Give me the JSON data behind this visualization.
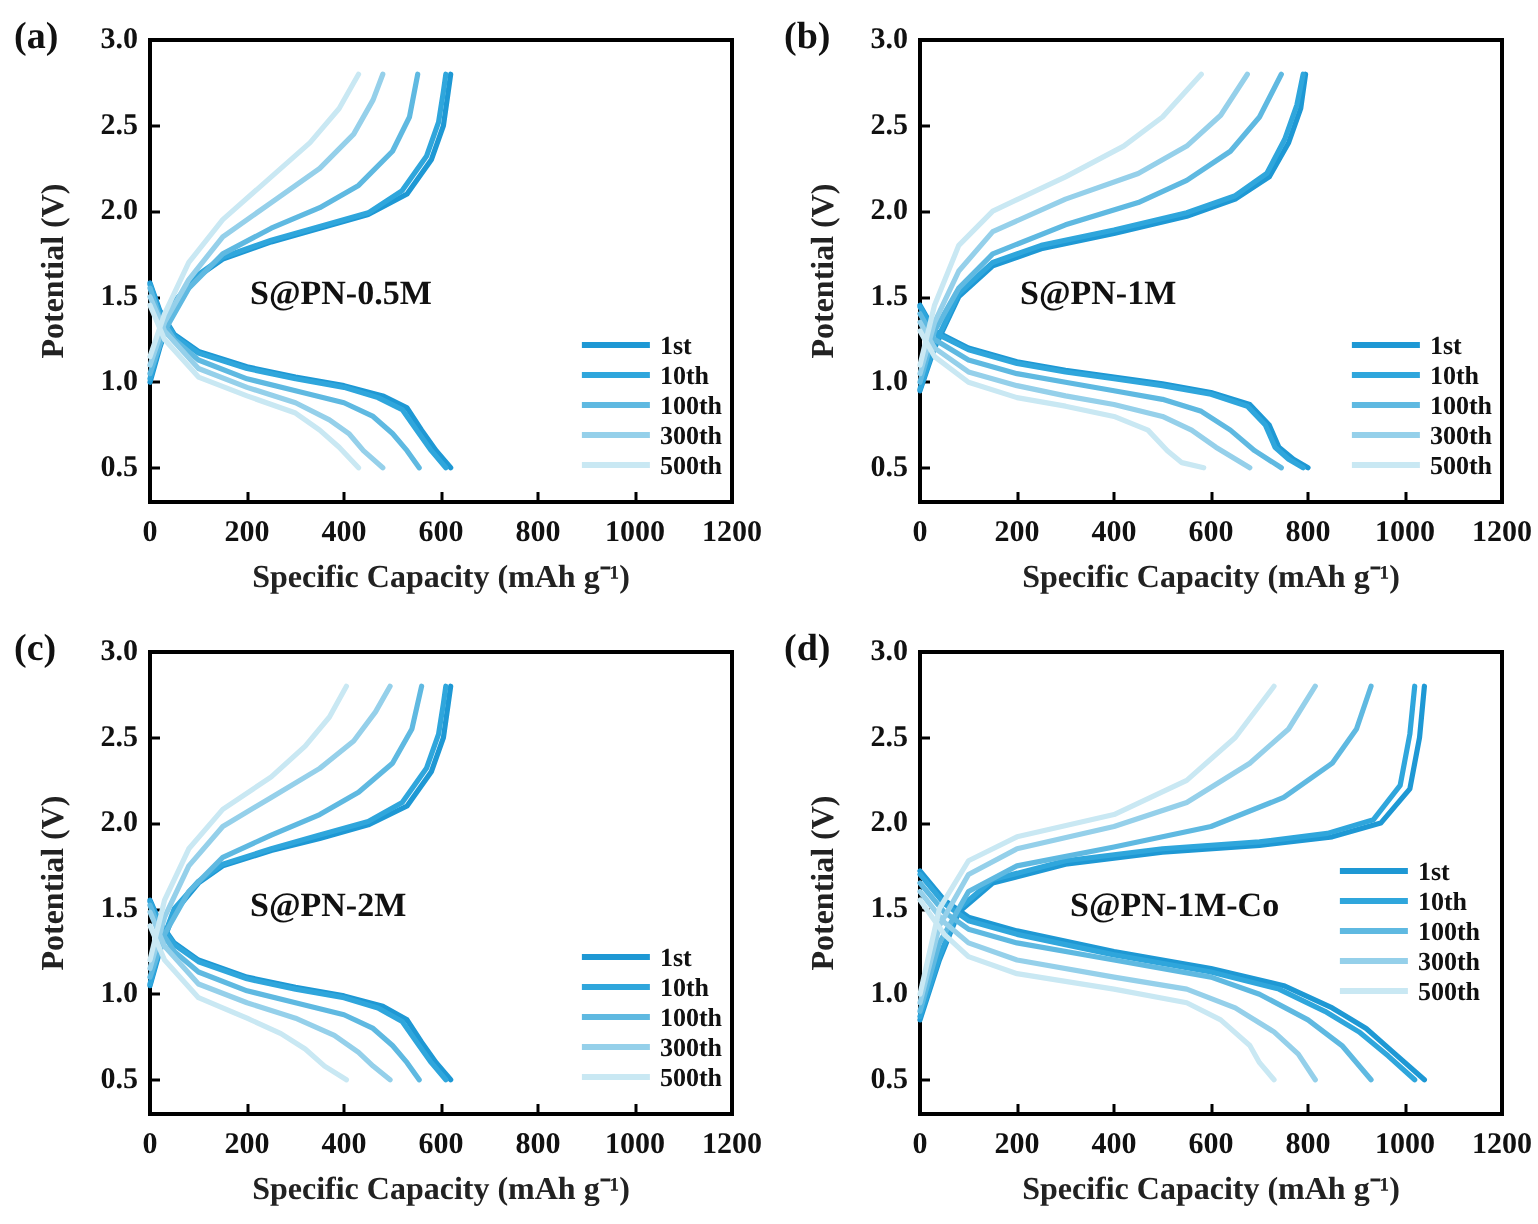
{
  "chart_data": [
    {
      "type": "line",
      "title": "(a)",
      "xlabel": "Specific Capacity (mAh g⁻¹)",
      "ylabel": "Potential (V)",
      "annotations": [
        "S@PN-0.5M"
      ],
      "legend": "bottom right",
      "xlim": [
        0,
        1200
      ],
      "xticks": [
        0,
        200,
        400,
        600,
        800,
        1000,
        1200
      ],
      "ylim": [
        0.3,
        3.0
      ],
      "yticks": [
        0.5,
        {
          "value": 1,
          "label": "1.0"
        },
        1.5,
        {
          "value": 2,
          "label": "2.0"
        },
        2.5,
        {
          "value": 3,
          "label": "3.0"
        }
      ],
      "series": [
        {
          "name": "1st",
          "color": "#1e98d4",
          "x": [
            0,
            20,
            50,
            100,
            200,
            300,
            400,
            480,
            530,
            560,
            590,
            620,
            null,
            0,
            20,
            50,
            100,
            150,
            250,
            350,
            450,
            530,
            580,
            605,
            615,
            620
          ],
          "values": [
            1.58,
            1.42,
            1.28,
            1.18,
            1.09,
            1.03,
            0.98,
            0.92,
            0.85,
            0.72,
            0.6,
            0.5,
            null,
            1.0,
            1.2,
            1.45,
            1.62,
            1.72,
            1.82,
            1.9,
            1.98,
            2.1,
            2.3,
            2.5,
            2.7,
            2.8
          ]
        },
        {
          "name": "10th",
          "color": "#2fa6dc",
          "x": [
            0,
            20,
            50,
            100,
            200,
            300,
            400,
            470,
            520,
            550,
            580,
            610,
            null,
            0,
            20,
            50,
            100,
            150,
            250,
            350,
            450,
            520,
            570,
            595,
            605,
            610
          ],
          "values": [
            1.57,
            1.41,
            1.27,
            1.17,
            1.08,
            1.02,
            0.97,
            0.91,
            0.84,
            0.72,
            0.6,
            0.5,
            null,
            1.02,
            1.22,
            1.47,
            1.63,
            1.73,
            1.83,
            1.91,
            1.99,
            2.12,
            2.32,
            2.52,
            2.7,
            2.8
          ]
        },
        {
          "name": "100th",
          "color": "#5fb9e1",
          "x": [
            0,
            20,
            50,
            100,
            200,
            300,
            400,
            460,
            500,
            530,
            555,
            null,
            0,
            30,
            80,
            150,
            250,
            350,
            430,
            500,
            535,
            552
          ],
          "values": [
            1.55,
            1.38,
            1.25,
            1.13,
            1.02,
            0.95,
            0.88,
            0.8,
            0.7,
            0.6,
            0.5,
            null,
            1.05,
            1.3,
            1.55,
            1.75,
            1.9,
            2.02,
            2.15,
            2.35,
            2.55,
            2.8
          ]
        },
        {
          "name": "300th",
          "color": "#95d0ea",
          "x": [
            0,
            30,
            100,
            200,
            300,
            370,
            410,
            440,
            480,
            null,
            0,
            30,
            80,
            150,
            250,
            350,
            420,
            460,
            480
          ],
          "values": [
            1.5,
            1.3,
            1.08,
            0.97,
            0.88,
            0.78,
            0.7,
            0.6,
            0.5,
            null,
            1.1,
            1.35,
            1.6,
            1.85,
            2.05,
            2.25,
            2.45,
            2.65,
            2.8
          ]
        },
        {
          "name": "500th",
          "color": "#c9e8f3",
          "x": [
            0,
            30,
            100,
            200,
            300,
            350,
            390,
            430,
            null,
            0,
            30,
            80,
            150,
            250,
            330,
            390,
            430
          ],
          "values": [
            1.45,
            1.25,
            1.03,
            0.92,
            0.82,
            0.72,
            0.62,
            0.5,
            null,
            1.15,
            1.4,
            1.7,
            1.95,
            2.2,
            2.4,
            2.6,
            2.8
          ]
        }
      ]
    },
    {
      "type": "line",
      "title": "(b)",
      "xlabel": "Specific Capacity (mAh g⁻¹)",
      "ylabel": "Potential (V)",
      "annotations": [
        "S@PN-1M"
      ],
      "legend": "bottom right",
      "xlim": [
        0,
        1200
      ],
      "xticks": [
        0,
        200,
        400,
        600,
        800,
        1000,
        1200
      ],
      "ylim": [
        0.3,
        3.0
      ],
      "yticks": [
        0.5,
        {
          "value": 1,
          "label": "1.0"
        },
        1.5,
        {
          "value": 2,
          "label": "2.0"
        },
        2.5,
        {
          "value": 3,
          "label": "3.0"
        }
      ],
      "series": [
        {
          "name": "1st",
          "color": "#1e98d4",
          "x": [
            0,
            30,
            100,
            200,
            300,
            400,
            500,
            600,
            680,
            720,
            740,
            770,
            800,
            null,
            0,
            30,
            80,
            150,
            250,
            400,
            550,
            650,
            720,
            760,
            785,
            795
          ],
          "values": [
            1.45,
            1.3,
            1.2,
            1.12,
            1.07,
            1.03,
            0.99,
            0.94,
            0.87,
            0.75,
            0.62,
            0.55,
            0.5,
            null,
            0.95,
            1.2,
            1.5,
            1.68,
            1.78,
            1.87,
            1.97,
            2.07,
            2.2,
            2.4,
            2.6,
            2.8
          ]
        },
        {
          "name": "10th",
          "color": "#2fa6dc",
          "x": [
            0,
            30,
            100,
            200,
            300,
            400,
            500,
            600,
            675,
            712,
            732,
            760,
            790,
            null,
            0,
            30,
            80,
            150,
            250,
            400,
            550,
            650,
            715,
            752,
            777,
            790
          ],
          "values": [
            1.44,
            1.29,
            1.19,
            1.11,
            1.06,
            1.02,
            0.98,
            0.93,
            0.86,
            0.75,
            0.62,
            0.55,
            0.5,
            null,
            0.96,
            1.22,
            1.52,
            1.7,
            1.8,
            1.89,
            1.99,
            2.09,
            2.22,
            2.42,
            2.62,
            2.8
          ]
        },
        {
          "name": "100th",
          "color": "#5fb9e1",
          "x": [
            0,
            30,
            100,
            200,
            300,
            400,
            500,
            580,
            640,
            690,
            745,
            null,
            0,
            30,
            80,
            150,
            300,
            450,
            550,
            640,
            700,
            745
          ],
          "values": [
            1.4,
            1.25,
            1.13,
            1.05,
            1.0,
            0.95,
            0.9,
            0.83,
            0.72,
            0.6,
            0.5,
            null,
            1.0,
            1.3,
            1.55,
            1.75,
            1.92,
            2.05,
            2.18,
            2.35,
            2.55,
            2.8
          ]
        },
        {
          "name": "300th",
          "color": "#95d0ea",
          "x": [
            0,
            30,
            100,
            200,
            300,
            400,
            500,
            560,
            610,
            680,
            null,
            0,
            30,
            80,
            150,
            300,
            450,
            550,
            620,
            675
          ],
          "values": [
            1.35,
            1.2,
            1.06,
            0.98,
            0.92,
            0.87,
            0.8,
            0.72,
            0.62,
            0.5,
            null,
            1.05,
            1.35,
            1.65,
            1.88,
            2.07,
            2.22,
            2.38,
            2.56,
            2.8
          ]
        },
        {
          "name": "500th",
          "color": "#c9e8f3",
          "x": [
            0,
            30,
            100,
            200,
            300,
            400,
            470,
            510,
            540,
            585,
            null,
            0,
            30,
            80,
            150,
            300,
            420,
            500,
            580
          ],
          "values": [
            1.3,
            1.15,
            1.0,
            0.91,
            0.86,
            0.8,
            0.72,
            0.6,
            0.53,
            0.5,
            null,
            1.1,
            1.45,
            1.8,
            2.0,
            2.2,
            2.38,
            2.55,
            2.8
          ]
        }
      ]
    },
    {
      "type": "line",
      "title": "(c)",
      "xlabel": "Specific Capacity (mAh g⁻¹)",
      "ylabel": "Potential (V)",
      "annotations": [
        "S@PN-2M"
      ],
      "legend": "bottom right",
      "xlim": [
        0,
        1200
      ],
      "xticks": [
        0,
        200,
        400,
        600,
        800,
        1000,
        1200
      ],
      "ylim": [
        0.3,
        3.0
      ],
      "yticks": [
        0.5,
        {
          "value": 1,
          "label": "1.0"
        },
        1.5,
        {
          "value": 2,
          "label": "2.0"
        },
        2.5,
        {
          "value": 3,
          "label": "3.0"
        }
      ],
      "series": [
        {
          "name": "1st",
          "color": "#1e98d4",
          "x": [
            0,
            20,
            50,
            100,
            200,
            300,
            400,
            480,
            530,
            560,
            590,
            620,
            null,
            0,
            20,
            50,
            100,
            150,
            250,
            350,
            450,
            530,
            580,
            605,
            615,
            620
          ],
          "values": [
            1.55,
            1.42,
            1.3,
            1.2,
            1.1,
            1.04,
            0.99,
            0.93,
            0.85,
            0.72,
            0.6,
            0.5,
            null,
            1.05,
            1.25,
            1.48,
            1.65,
            1.75,
            1.84,
            1.91,
            1.99,
            2.1,
            2.3,
            2.5,
            2.7,
            2.8
          ]
        },
        {
          "name": "10th",
          "color": "#2fa6dc",
          "x": [
            0,
            20,
            50,
            100,
            200,
            300,
            400,
            470,
            520,
            550,
            580,
            610,
            null,
            0,
            20,
            50,
            100,
            150,
            250,
            350,
            450,
            520,
            570,
            595,
            605,
            610
          ],
          "values": [
            1.54,
            1.41,
            1.29,
            1.19,
            1.09,
            1.03,
            0.98,
            0.92,
            0.84,
            0.72,
            0.6,
            0.5,
            null,
            1.06,
            1.27,
            1.5,
            1.66,
            1.76,
            1.85,
            1.93,
            2.01,
            2.12,
            2.32,
            2.52,
            2.7,
            2.8
          ]
        },
        {
          "name": "100th",
          "color": "#5fb9e1",
          "x": [
            0,
            20,
            50,
            100,
            200,
            300,
            400,
            460,
            500,
            530,
            555,
            null,
            0,
            30,
            80,
            150,
            250,
            350,
            430,
            500,
            540,
            560
          ],
          "values": [
            1.52,
            1.38,
            1.25,
            1.13,
            1.02,
            0.95,
            0.88,
            0.8,
            0.7,
            0.6,
            0.5,
            null,
            1.1,
            1.35,
            1.6,
            1.8,
            1.93,
            2.05,
            2.18,
            2.35,
            2.55,
            2.8
          ]
        },
        {
          "name": "300th",
          "color": "#95d0ea",
          "x": [
            0,
            30,
            100,
            200,
            300,
            380,
            430,
            460,
            495,
            null,
            0,
            30,
            80,
            150,
            250,
            350,
            420,
            465,
            495
          ],
          "values": [
            1.48,
            1.28,
            1.06,
            0.95,
            0.86,
            0.76,
            0.66,
            0.58,
            0.5,
            null,
            1.15,
            1.45,
            1.75,
            1.98,
            2.15,
            2.32,
            2.48,
            2.65,
            2.8
          ]
        },
        {
          "name": "500th",
          "color": "#c9e8f3",
          "x": [
            0,
            30,
            100,
            200,
            270,
            320,
            360,
            405,
            null,
            0,
            30,
            80,
            150,
            250,
            320,
            370,
            405
          ],
          "values": [
            1.4,
            1.2,
            0.98,
            0.86,
            0.77,
            0.68,
            0.58,
            0.5,
            null,
            1.2,
            1.55,
            1.85,
            2.08,
            2.27,
            2.45,
            2.62,
            2.8
          ]
        }
      ]
    },
    {
      "type": "line",
      "title": "(d)",
      "xlabel": "Specific Capacity (mAh g⁻¹)",
      "ylabel": "Potential (V)",
      "annotations": [
        "S@PN-1M-Co"
      ],
      "legend": "right",
      "xlim": [
        0,
        1200
      ],
      "xticks": [
        0,
        200,
        400,
        600,
        800,
        1000,
        1200
      ],
      "ylim": [
        0.3,
        3.0
      ],
      "yticks": [
        0.5,
        {
          "value": 1,
          "label": "1.0"
        },
        1.5,
        {
          "value": 2,
          "label": "2.0"
        },
        2.5,
        {
          "value": 3,
          "label": "3.0"
        }
      ],
      "series": [
        {
          "name": "1st",
          "color": "#1e98d4",
          "x": [
            0,
            50,
            100,
            200,
            400,
            600,
            750,
            850,
            920,
            980,
            1040,
            null,
            0,
            40,
            80,
            150,
            300,
            500,
            700,
            850,
            950,
            1010,
            1030,
            1040
          ],
          "values": [
            1.72,
            1.55,
            1.45,
            1.37,
            1.25,
            1.15,
            1.05,
            0.92,
            0.8,
            0.65,
            0.5,
            null,
            0.85,
            1.2,
            1.48,
            1.65,
            1.76,
            1.83,
            1.87,
            1.92,
            2.0,
            2.2,
            2.5,
            2.8
          ]
        },
        {
          "name": "10th",
          "color": "#2fa6dc",
          "x": [
            0,
            50,
            100,
            200,
            400,
            600,
            740,
            835,
            905,
            965,
            1020,
            null,
            0,
            40,
            80,
            150,
            300,
            500,
            700,
            840,
            935,
            990,
            1010,
            1020
          ],
          "values": [
            1.7,
            1.53,
            1.43,
            1.35,
            1.23,
            1.13,
            1.03,
            0.9,
            0.78,
            0.64,
            0.5,
            null,
            0.87,
            1.22,
            1.5,
            1.67,
            1.78,
            1.85,
            1.89,
            1.94,
            2.02,
            2.22,
            2.52,
            2.8
          ]
        },
        {
          "name": "100th",
          "color": "#5fb9e1",
          "x": [
            0,
            50,
            100,
            200,
            400,
            600,
            700,
            800,
            870,
            930,
            null,
            0,
            40,
            100,
            200,
            400,
            600,
            750,
            850,
            900,
            930
          ],
          "values": [
            1.65,
            1.48,
            1.38,
            1.3,
            1.2,
            1.1,
            1.0,
            0.85,
            0.7,
            0.5,
            null,
            0.9,
            1.3,
            1.6,
            1.75,
            1.86,
            1.98,
            2.15,
            2.35,
            2.55,
            2.8
          ]
        },
        {
          "name": "300th",
          "color": "#95d0ea",
          "x": [
            0,
            50,
            100,
            200,
            400,
            550,
            650,
            730,
            780,
            815,
            null,
            0,
            40,
            100,
            200,
            400,
            550,
            680,
            760,
            815
          ],
          "values": [
            1.6,
            1.42,
            1.3,
            1.2,
            1.1,
            1.03,
            0.92,
            0.78,
            0.65,
            0.5,
            null,
            0.95,
            1.4,
            1.7,
            1.85,
            1.98,
            2.12,
            2.35,
            2.55,
            2.8
          ]
        },
        {
          "name": "500th",
          "color": "#c9e8f3",
          "x": [
            0,
            50,
            100,
            200,
            400,
            550,
            620,
            680,
            700,
            730,
            null,
            0,
            40,
            100,
            200,
            400,
            550,
            650,
            730
          ],
          "values": [
            1.55,
            1.35,
            1.22,
            1.12,
            1.03,
            0.95,
            0.85,
            0.7,
            0.6,
            0.5,
            null,
            1.0,
            1.5,
            1.78,
            1.92,
            2.05,
            2.25,
            2.5,
            2.8
          ]
        }
      ]
    }
  ]
}
